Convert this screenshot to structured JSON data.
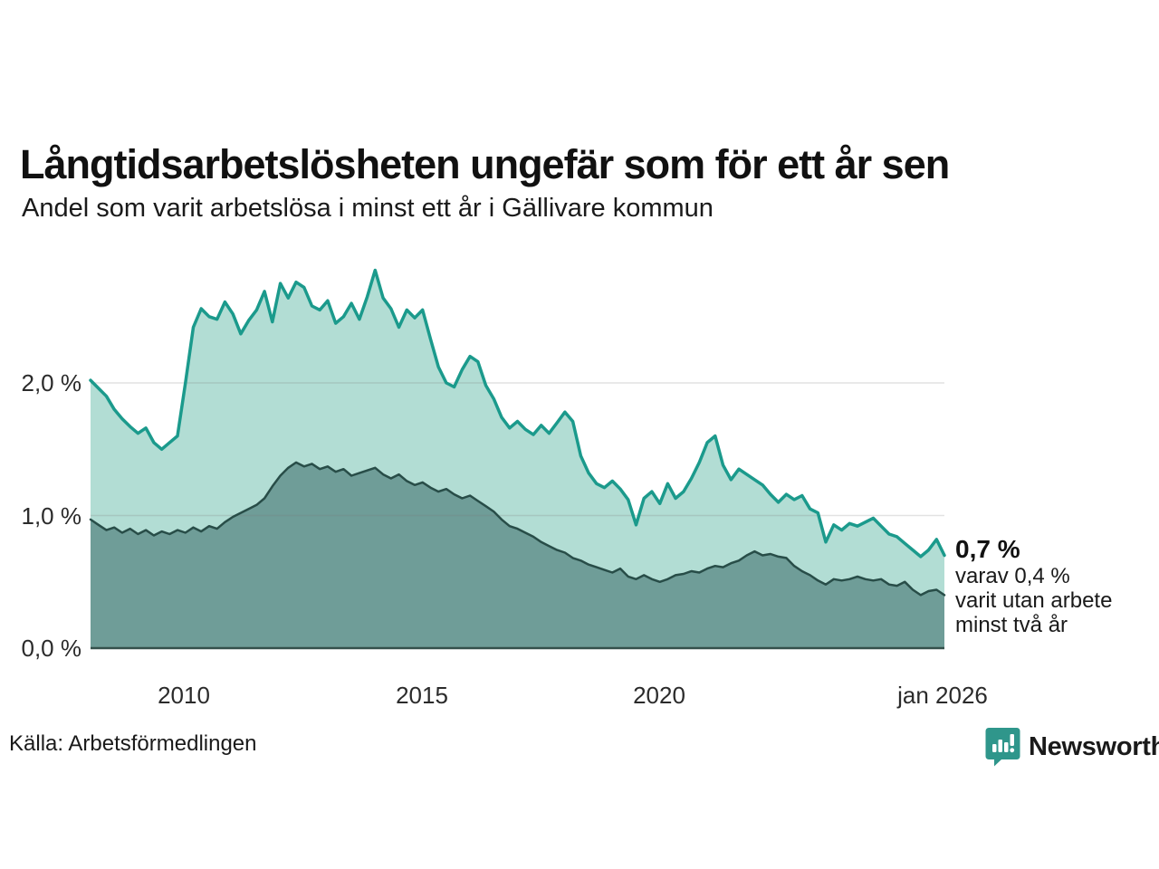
{
  "header": {
    "title": "Långtidsarbetslösheten ungefär som för ett år sen",
    "subtitle": "Andel som varit arbetslösa i minst ett år i Gällivare kommun"
  },
  "chart_data": {
    "type": "area",
    "title": "Långtidsarbetslösheten ungefär som för ett år sen",
    "subtitle": "Andel som varit arbetslösa i minst ett år i Gällivare kommun",
    "x_start_year": 2008.0,
    "x_step_years": 0.16667,
    "x_end_label": "jan 2026",
    "ylim": [
      0,
      2.95
    ],
    "y_unit": "%",
    "grid": true,
    "legend_position": "none",
    "y_ticks": [
      {
        "value": 0,
        "label": "0,0 %"
      },
      {
        "value": 1,
        "label": "1,0 %"
      },
      {
        "value": 2,
        "label": "2,0 %"
      }
    ],
    "x_ticks": [
      {
        "year": 2010,
        "label": "2010"
      },
      {
        "year": 2015,
        "label": "2015"
      },
      {
        "year": 2020,
        "label": "2020"
      },
      {
        "year": 2026.04,
        "label": "jan 2026"
      }
    ],
    "series": [
      {
        "name": "Andel arbetslösa minst ett år",
        "line_color": "#1b9a8c",
        "fill_color": "#b2ddd4",
        "line_width": 3.5,
        "end_value_label": "0,7 %",
        "values": [
          2.02,
          1.96,
          1.9,
          1.8,
          1.73,
          1.67,
          1.62,
          1.66,
          1.55,
          1.5,
          1.55,
          1.6,
          2.0,
          2.42,
          2.56,
          2.5,
          2.48,
          2.61,
          2.52,
          2.37,
          2.47,
          2.55,
          2.69,
          2.46,
          2.75,
          2.64,
          2.76,
          2.72,
          2.58,
          2.55,
          2.62,
          2.45,
          2.5,
          2.6,
          2.48,
          2.65,
          2.85,
          2.64,
          2.56,
          2.42,
          2.55,
          2.49,
          2.55,
          2.33,
          2.12,
          2.0,
          1.97,
          2.1,
          2.2,
          2.16,
          1.98,
          1.88,
          1.74,
          1.66,
          1.71,
          1.65,
          1.61,
          1.68,
          1.62,
          1.7,
          1.78,
          1.71,
          1.45,
          1.32,
          1.24,
          1.21,
          1.26,
          1.2,
          1.12,
          0.93,
          1.13,
          1.18,
          1.09,
          1.24,
          1.13,
          1.18,
          1.28,
          1.4,
          1.55,
          1.6,
          1.38,
          1.27,
          1.35,
          1.31,
          1.27,
          1.23,
          1.16,
          1.1,
          1.16,
          1.12,
          1.15,
          1.05,
          1.02,
          0.8,
          0.93,
          0.89,
          0.94,
          0.92,
          0.95,
          0.98,
          0.92,
          0.86,
          0.84,
          0.79,
          0.74,
          0.69,
          0.74,
          0.82,
          0.7
        ]
      },
      {
        "name": "Andel som varit utan arbete minst två år",
        "line_color": "#284d48",
        "fill_color": "#6f9d98",
        "line_width": 2.5,
        "end_value_label": "0,4 %",
        "values": [
          0.97,
          0.93,
          0.89,
          0.91,
          0.87,
          0.9,
          0.86,
          0.89,
          0.85,
          0.88,
          0.86,
          0.89,
          0.87,
          0.91,
          0.88,
          0.92,
          0.9,
          0.95,
          0.99,
          1.02,
          1.05,
          1.08,
          1.13,
          1.22,
          1.3,
          1.36,
          1.4,
          1.37,
          1.39,
          1.35,
          1.37,
          1.33,
          1.35,
          1.3,
          1.32,
          1.34,
          1.36,
          1.31,
          1.28,
          1.31,
          1.26,
          1.23,
          1.25,
          1.21,
          1.18,
          1.2,
          1.16,
          1.13,
          1.15,
          1.11,
          1.07,
          1.03,
          0.97,
          0.92,
          0.9,
          0.87,
          0.84,
          0.8,
          0.77,
          0.74,
          0.72,
          0.68,
          0.66,
          0.63,
          0.61,
          0.59,
          0.57,
          0.6,
          0.54,
          0.52,
          0.55,
          0.52,
          0.5,
          0.52,
          0.55,
          0.56,
          0.58,
          0.57,
          0.6,
          0.62,
          0.61,
          0.64,
          0.66,
          0.7,
          0.73,
          0.7,
          0.71,
          0.69,
          0.68,
          0.62,
          0.58,
          0.55,
          0.51,
          0.48,
          0.52,
          0.51,
          0.52,
          0.54,
          0.52,
          0.51,
          0.52,
          0.48,
          0.47,
          0.5,
          0.44,
          0.4,
          0.43,
          0.44,
          0.4
        ]
      }
    ]
  },
  "annotation": {
    "value": "0,7 %",
    "lines": [
      "varav 0,4 %",
      "varit utan arbete",
      "minst två år"
    ]
  },
  "footer": {
    "source": "Källa: Arbetsförmedlingen",
    "brand": "Newsworthy"
  },
  "colors": {
    "teal_line": "#1b9a8c",
    "teal_fill": "#b2ddd4",
    "dark_line": "#284d48",
    "dark_fill": "#6f9d98",
    "grid_line": "#e3e3e3",
    "axis_line": "#34504b",
    "brand_teal": "#2f968b"
  }
}
